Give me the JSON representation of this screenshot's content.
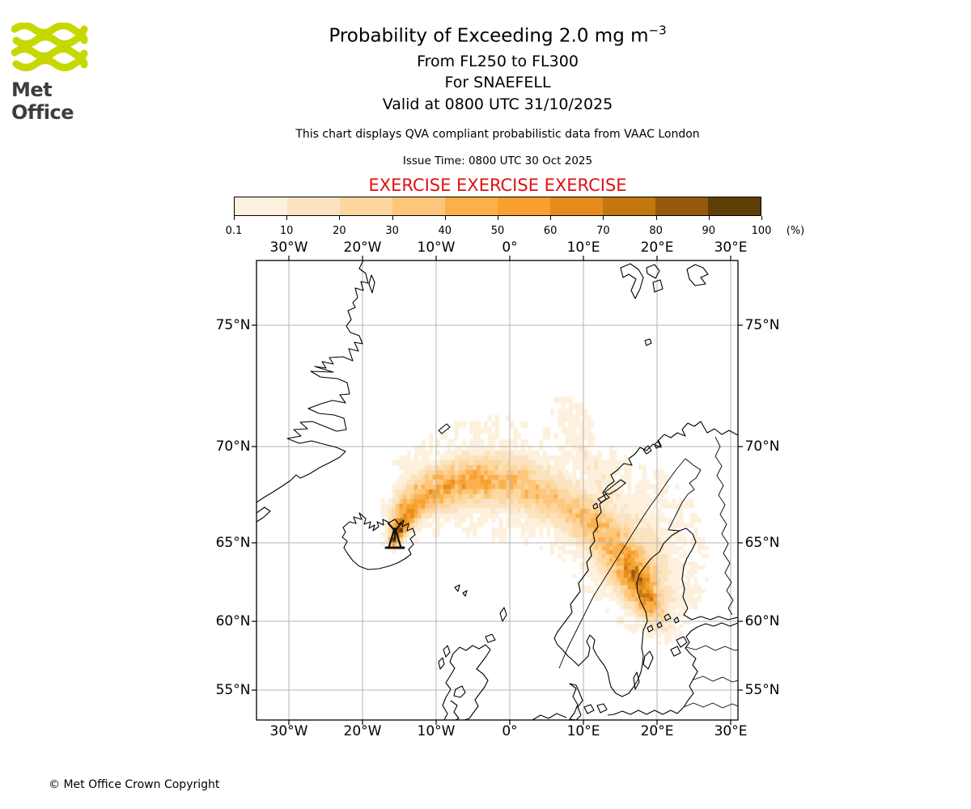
{
  "header": {
    "logo_text": "Met Office",
    "title_main": "Probability of Exceeding 2.0 mg m",
    "title_sup": "−3",
    "subtitle_level": "From FL250 to FL300",
    "subtitle_volcano": "For SNAEFELL",
    "subtitle_valid": "Valid at 0800 UTC 31/10/2025",
    "info_line": "This chart displays QVA compliant probabilistic data from VAAC London",
    "issue_line": "Issue Time: 0800 UTC 30 Oct 2025",
    "exercise_line": "EXERCISE EXERCISE EXERCISE"
  },
  "colors": {
    "exercise_red": "#e01010",
    "logo_green": "#c6d800",
    "grid_gray": "#b3b3b3"
  },
  "colorbar": {
    "tick_labels": [
      "0.1",
      "10",
      "20",
      "30",
      "40",
      "50",
      "60",
      "70",
      "80",
      "90",
      "100"
    ],
    "unit_label": "(%)",
    "segment_colors": [
      "#fdf0dc",
      "#fce3c0",
      "#fdd79f",
      "#fcc77c",
      "#fbb04c",
      "#f7a02f",
      "#e78b1a",
      "#c27710",
      "#95590c",
      "#603e07"
    ]
  },
  "map": {
    "lon_tick_labels": [
      "30°W",
      "20°W",
      "10°W",
      "0°",
      "10°E",
      "20°E",
      "30°E"
    ],
    "lon_tick_values": [
      -30,
      -20,
      -10,
      0,
      10,
      20,
      30
    ],
    "lat_tick_labels": [
      "75°N",
      "70°N",
      "65°N",
      "60°N",
      "55°N"
    ],
    "lat_tick_values": [
      75,
      70,
      65,
      60,
      55
    ]
  },
  "chart_data": {
    "type": "heatmap",
    "title": "Probability of Exceeding 2.0 mg m−3 from FL250 to FL300 for SNAEFELL, valid 0800 UTC 31/10/2025",
    "units": "%",
    "levels": [
      0.1,
      10,
      20,
      30,
      40,
      50,
      60,
      70,
      80,
      90,
      100
    ],
    "level_colors": [
      "#fdf0dc",
      "#fce3c0",
      "#fdd79f",
      "#fcc77c",
      "#fbb04c",
      "#f7a02f",
      "#e78b1a",
      "#c27710",
      "#95590c",
      "#603e07"
    ],
    "extent": {
      "lon_min": -34.5,
      "lon_max": 31.0,
      "lat_min": 52.3,
      "lat_max": 77.3
    },
    "cell_size_deg": {
      "lon": 0.5,
      "lat": 0.25
    },
    "volcano": {
      "name": "SNAEFELL",
      "lon": -15.7,
      "lat": 65.15
    },
    "plumes": [
      {
        "name": "main-arc",
        "knots": [
          [
            -15.7,
            65.15,
            88,
            0.2
          ],
          [
            -15.1,
            65.75,
            80,
            0.3
          ],
          [
            -14.3,
            66.4,
            70,
            0.42
          ],
          [
            -12.8,
            67.15,
            60,
            0.55
          ],
          [
            -10.5,
            67.7,
            52,
            0.68
          ],
          [
            -7.5,
            68.05,
            47,
            0.78
          ],
          [
            -4.5,
            68.25,
            44,
            0.85
          ],
          [
            -1.5,
            68.2,
            40,
            0.88
          ],
          [
            1.5,
            67.95,
            36,
            0.88
          ],
          [
            4.5,
            67.55,
            32,
            0.85
          ],
          [
            7.5,
            67.0,
            34,
            0.8
          ],
          [
            10.0,
            66.45,
            37,
            0.8
          ],
          [
            12.0,
            65.75,
            40,
            0.85
          ],
          [
            14.0,
            64.9,
            46,
            0.9
          ],
          [
            15.8,
            63.9,
            56,
            0.95
          ],
          [
            17.0,
            63.0,
            66,
            0.9
          ],
          [
            17.9,
            62.2,
            72,
            0.8
          ],
          [
            18.7,
            61.45,
            62,
            0.7
          ],
          [
            19.5,
            60.75,
            42,
            0.6
          ],
          [
            20.2,
            60.15,
            26,
            0.5
          ],
          [
            21.0,
            59.6,
            13,
            0.42
          ],
          [
            21.8,
            59.2,
            7,
            0.35
          ]
        ]
      },
      {
        "name": "northern-streak",
        "knots": [
          [
            7.8,
            71.4,
            6,
            0.25
          ],
          [
            8.7,
            70.7,
            7,
            0.3
          ],
          [
            9.7,
            69.9,
            8,
            0.38
          ],
          [
            10.8,
            69.1,
            9,
            0.48
          ],
          [
            12.0,
            68.3,
            10,
            0.58
          ],
          [
            13.2,
            67.5,
            12,
            0.7
          ]
        ]
      },
      {
        "name": "bothnia-halo",
        "knots": [
          [
            15.5,
            65.9,
            13,
            1.1
          ],
          [
            17.5,
            65.0,
            15,
            1.15
          ],
          [
            19.3,
            64.0,
            15,
            1.05
          ],
          [
            20.5,
            63.0,
            13,
            0.95
          ],
          [
            21.2,
            62.0,
            11,
            0.8
          ],
          [
            21.6,
            61.0,
            8,
            0.6
          ]
        ]
      }
    ]
  },
  "footer": {
    "copyright_text": "© Met Office Crown Copyright"
  }
}
